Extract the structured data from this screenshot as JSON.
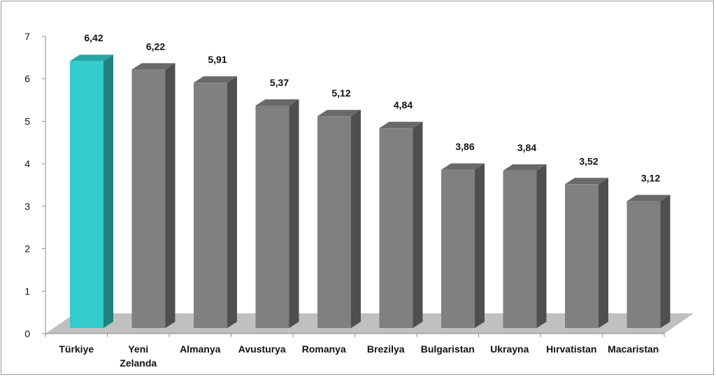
{
  "chart_data": {
    "type": "bar",
    "style": "3d-column",
    "categories": [
      [
        "Türkiye"
      ],
      [
        "Yeni",
        "Zelanda"
      ],
      [
        "Almanya"
      ],
      [
        "Avusturya"
      ],
      [
        "Romanya"
      ],
      [
        "Brezilya"
      ],
      [
        "Bulgaristan"
      ],
      [
        "Ukrayna"
      ],
      [
        "Hırvatistan"
      ],
      [
        "Macaristan"
      ]
    ],
    "values": [
      6.42,
      6.22,
      5.91,
      5.37,
      5.12,
      4.84,
      3.86,
      3.84,
      3.52,
      3.12
    ],
    "value_labels": [
      "6,42",
      "6,22",
      "5,91",
      "5,37",
      "5,12",
      "4,84",
      "3,86",
      "3,84",
      "3,52",
      "3,12"
    ],
    "ylim": [
      0,
      7
    ],
    "yticks": [
      "0",
      "1",
      "2",
      "3",
      "4",
      "5",
      "6",
      "7"
    ],
    "highlight_index": 0,
    "colors": {
      "highlight_front": "#33cccc",
      "highlight_side": "#1f8080",
      "highlight_top": "#27a6a6",
      "bar_front": "#808080",
      "bar_side": "#4f4f4f",
      "bar_top": "#696969",
      "floor": "#c0c0c0",
      "axis": "#8c8c8c"
    },
    "grid": false,
    "legend": "none"
  }
}
